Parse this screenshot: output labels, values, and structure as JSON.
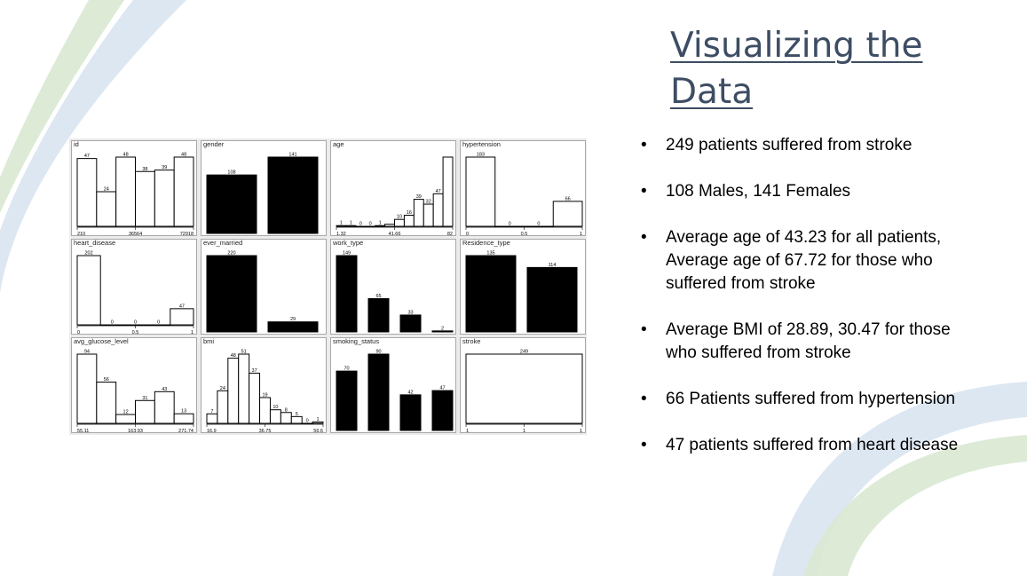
{
  "slide": {
    "title": "Visualizing the Data",
    "bullets": [
      "249 patients suffered from stroke",
      "108 Males, 141 Females",
      "Average age of 43.23 for all patients, Average age of 67.72 for those who suffered from stroke",
      "Average BMI of 28.89, 30.47 for those who suffered from stroke",
      "66 Patients suffered from hypertension",
      "47 patients suffered from heart disease"
    ]
  },
  "colors": {
    "title": "#3d4d63",
    "deco_blue": "#c7d6ea",
    "deco_green": "#cfe3c9"
  },
  "chart_data": [
    {
      "type": "bar",
      "title": "id",
      "values": [
        47,
        24,
        48,
        38,
        39,
        48
      ],
      "ticks": [
        "210",
        "36564",
        "72918"
      ],
      "fill": "white"
    },
    {
      "type": "bar",
      "title": "gender",
      "values": [
        108,
        141
      ],
      "ticks": [],
      "fill": "black"
    },
    {
      "type": "bar",
      "title": "age",
      "values": [
        1,
        1,
        0,
        0,
        1,
        3,
        10,
        16,
        39,
        32,
        47,
        100
      ],
      "labels": [
        "1",
        "1",
        "0",
        "0",
        "1",
        "",
        "10",
        "16",
        "39",
        "32",
        "47",
        ""
      ],
      "ticks": [
        "1.32",
        "41.66",
        "82"
      ],
      "fill": "white"
    },
    {
      "type": "bar",
      "title": "hypertension",
      "values": [
        183,
        0,
        0,
        66
      ],
      "ticks": [
        "0",
        "0.5",
        "1"
      ],
      "fill": "white"
    },
    {
      "type": "bar",
      "title": "heart_disease",
      "values": [
        202,
        0,
        0,
        0,
        47
      ],
      "ticks": [
        "0",
        "0.5",
        "1"
      ],
      "fill": "white"
    },
    {
      "type": "bar",
      "title": "ever_married",
      "values": [
        220,
        29
      ],
      "ticks": [],
      "fill": "black"
    },
    {
      "type": "bar",
      "title": "work_type",
      "values": [
        149,
        65,
        33,
        2
      ],
      "ticks": [],
      "fill": "black"
    },
    {
      "type": "bar",
      "title": "Residence_type",
      "values": [
        135,
        114
      ],
      "ticks": [],
      "fill": "black"
    },
    {
      "type": "bar",
      "title": "avg_glucose_level",
      "values": [
        94,
        56,
        12,
        31,
        43,
        13
      ],
      "ticks": [
        "55.11",
        "163.93",
        "271.74"
      ],
      "fill": "white"
    },
    {
      "type": "bar",
      "title": "bmi",
      "values": [
        7,
        24,
        48,
        51,
        37,
        19,
        10,
        8,
        5,
        0,
        1
      ],
      "ticks": [
        "16.9",
        "36.75",
        "56.6"
      ],
      "fill": "white"
    },
    {
      "type": "bar",
      "title": "smoking_status",
      "values": [
        70,
        90,
        42,
        47
      ],
      "ticks": [],
      "fill": "black"
    },
    {
      "type": "bar",
      "title": "stroke",
      "values": [
        249
      ],
      "ticks": [
        "1",
        "1",
        "1"
      ],
      "fill": "white"
    }
  ]
}
